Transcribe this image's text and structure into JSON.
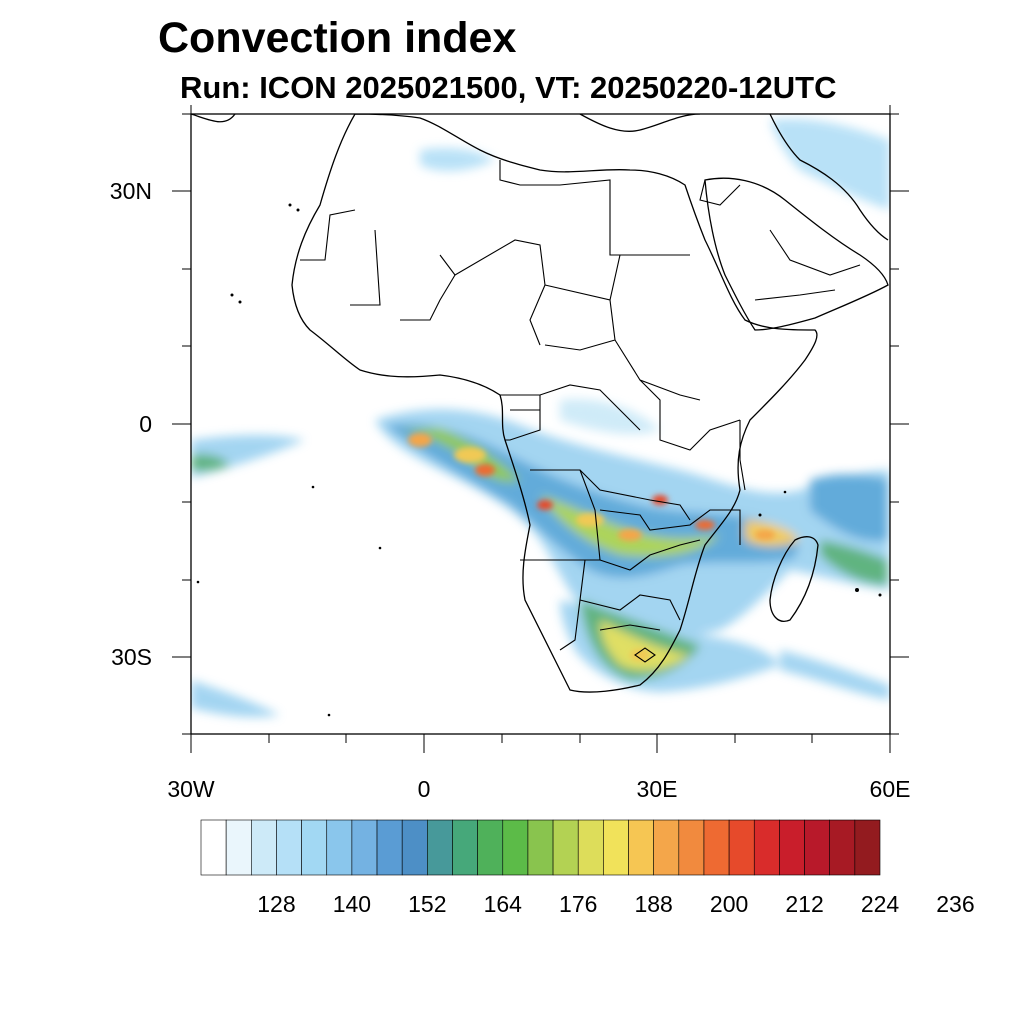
{
  "title": "Convection index",
  "subtitle": "Run: ICON 2025021500,  VT: 20250220-12UTC",
  "map": {
    "lon_range": [
      -30,
      60
    ],
    "lat_range": [
      -40,
      40
    ],
    "lat_labels": [
      "30N",
      "0",
      "30S"
    ],
    "lon_labels": [
      "30W",
      "0",
      "30E",
      "60E"
    ]
  },
  "colorbar": {
    "labels": [
      "128",
      "140",
      "152",
      "164",
      "176",
      "188",
      "200",
      "212",
      "224",
      "236"
    ],
    "colors": [
      "#ffffff",
      "#eaf6fc",
      "#cdeaf8",
      "#b5e0f7",
      "#a2d8f3",
      "#8ac6ec",
      "#74b2e2",
      "#5a9cd4",
      "#4d8fc6",
      "#47999a",
      "#46a87a",
      "#4fb15a",
      "#5cbb48",
      "#89c44e",
      "#b3d253",
      "#dddd5a",
      "#f1e25a",
      "#f6c653",
      "#f4a64a",
      "#f18a3e",
      "#ee6a32",
      "#e64a2b",
      "#d92c2b",
      "#c91e2b",
      "#b8192a",
      "#a71a24",
      "#931b1f"
    ]
  }
}
